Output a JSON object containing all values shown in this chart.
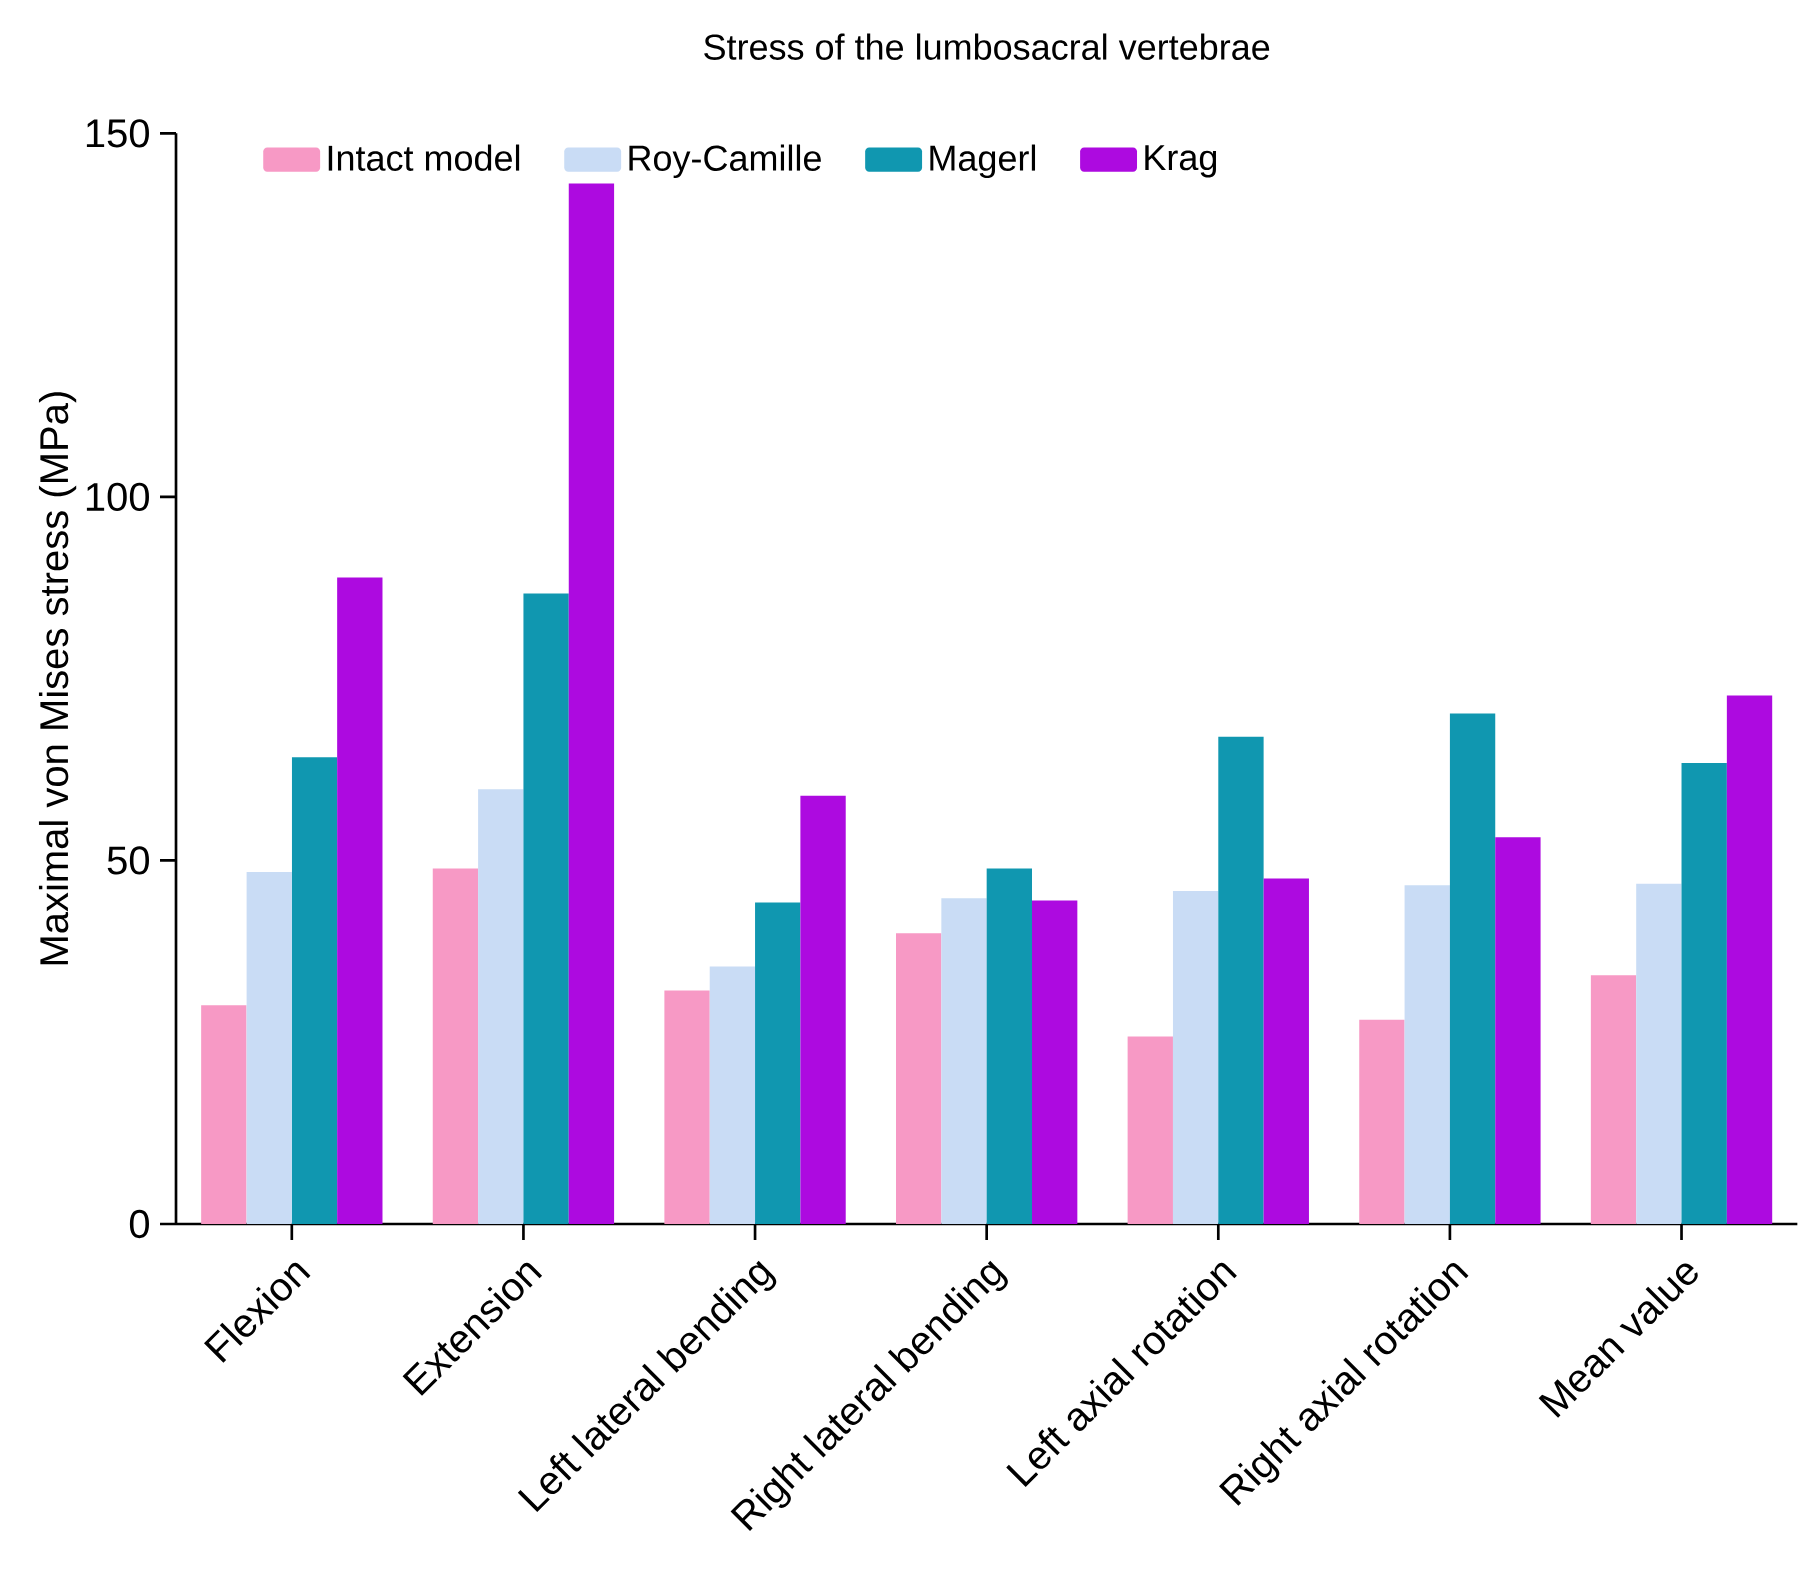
{
  "chart_data": {
    "type": "bar",
    "title": "Stress of the lumbosacral vertebrae",
    "ylabel": "Maximal von Mises stress (MPa)",
    "categories": [
      "Flexion",
      "Extension",
      "Left lateral bending",
      "Right lateral bending",
      "Left axial rotation",
      "Right axial rotation",
      "Mean value"
    ],
    "series": [
      {
        "name": "Intact model",
        "color": "#f799c5",
        "values": [
          30.1,
          48.9,
          32.1,
          40.0,
          25.8,
          28.1,
          34.2
        ]
      },
      {
        "name": "Roy-Camille",
        "color": "#c9dcf5",
        "values": [
          48.4,
          59.8,
          35.4,
          44.8,
          45.8,
          46.6,
          46.8
        ]
      },
      {
        "name": "Magerl",
        "color": "#1097b0",
        "values": [
          64.2,
          86.7,
          44.2,
          48.9,
          67.0,
          70.2,
          63.4
        ]
      },
      {
        "name": "Krag",
        "color": "#ad0ae0",
        "values": [
          88.9,
          143.1,
          58.9,
          44.5,
          47.5,
          53.2,
          72.7
        ]
      }
    ],
    "ylim": [
      0,
      150
    ],
    "yticks": [
      0,
      50,
      100,
      150
    ],
    "grid": false,
    "legend": "top"
  }
}
